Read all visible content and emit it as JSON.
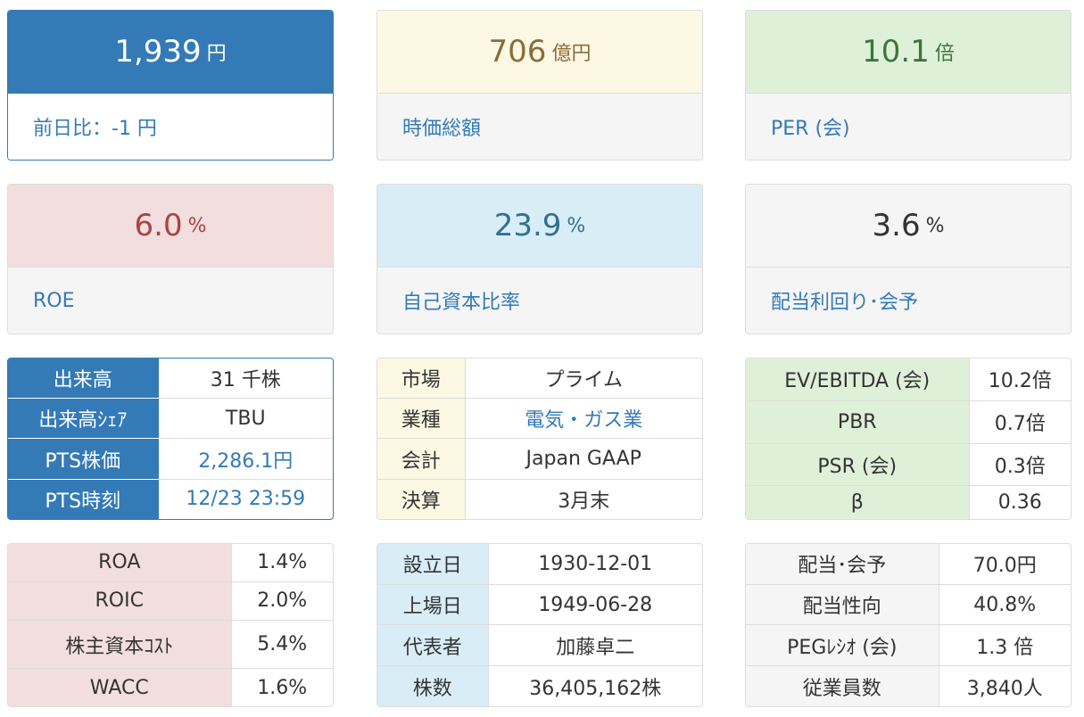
{
  "price": {
    "value": "1,939",
    "unit": "円",
    "label": "前日比：-1 円"
  },
  "market_cap": {
    "value": "706",
    "unit": "億円",
    "label": "時価総額"
  },
  "per": {
    "value": "10.1",
    "unit": "倍",
    "label": "PER (会)"
  },
  "roe": {
    "value": "6.0",
    "unit": "%",
    "label": "ROE"
  },
  "equity_ratio": {
    "value": "23.9",
    "unit": "%",
    "label": "自己資本比率"
  },
  "dividend_yield": {
    "value": "3.6",
    "unit": "%",
    "label": "配当利回り･会予"
  },
  "volume_table": {
    "rows": [
      {
        "k": "出来高",
        "v": "31 千株"
      },
      {
        "k": "出来高ｼｪｱ",
        "v": "TBU"
      },
      {
        "k": "PTS株価",
        "v": "2,286.1円"
      },
      {
        "k": "PTS時刻",
        "v": "12/23 23:59"
      }
    ]
  },
  "market_table": {
    "rows": [
      {
        "k": "市場",
        "v": "プライム"
      },
      {
        "k": "業種",
        "v": "電気・ガス業"
      },
      {
        "k": "会計",
        "v": "Japan GAAP"
      },
      {
        "k": "決算",
        "v": "3月末"
      }
    ]
  },
  "valuation_table": {
    "rows": [
      {
        "k": "EV/EBITDA (会)",
        "v": "10.2倍"
      },
      {
        "k": "PBR",
        "v": "0.7倍"
      },
      {
        "k": "PSR (会)",
        "v": "0.3倍"
      },
      {
        "k": "β",
        "v": "0.36"
      }
    ]
  },
  "returns_table": {
    "rows": [
      {
        "k": "ROA",
        "v": "1.4%"
      },
      {
        "k": "ROIC",
        "v": "2.0%"
      },
      {
        "k": "株主資本ｺｽﾄ",
        "v": "5.4%"
      },
      {
        "k": "WACC",
        "v": "1.6%"
      }
    ]
  },
  "company_table": {
    "rows": [
      {
        "k": "設立日",
        "v": "1930-12-01"
      },
      {
        "k": "上場日",
        "v": "1949-06-28"
      },
      {
        "k": "代表者",
        "v": "加藤卓二"
      },
      {
        "k": "株数",
        "v": "36,405,162株"
      }
    ]
  },
  "dividend_table": {
    "rows": [
      {
        "k": "配当･会予",
        "v": "70.0円"
      },
      {
        "k": "配当性向",
        "v": "40.8%"
      },
      {
        "k": "PEGﾚｼｵ (会)",
        "v": "1.3 倍"
      },
      {
        "k": "従業員数",
        "v": "3,840人"
      }
    ]
  },
  "colors": {
    "primary": "#337ab7",
    "warning": "#fcf8e3",
    "success": "#dff0d8",
    "danger": "#f2dede",
    "info": "#d9edf7"
  }
}
